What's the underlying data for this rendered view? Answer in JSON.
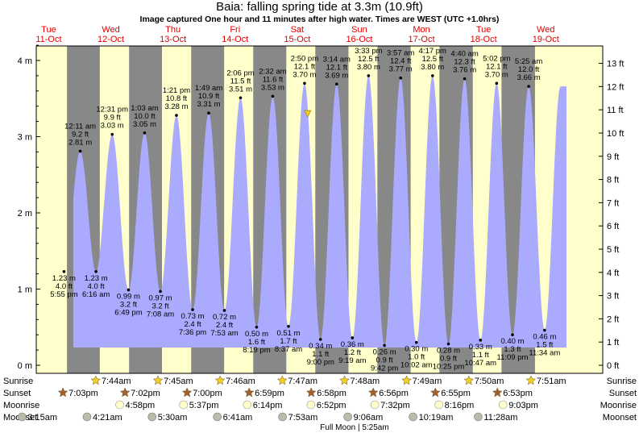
{
  "header": {
    "title": "Baia: falling  spring tide at 3.3m (10.9ft)",
    "subtitle": "Image captured One hour and 11 minutes after high water. Times are WEST (UTC +1.0hrs)"
  },
  "colors": {
    "day_bg": "#ffffcc",
    "night_bg": "#888888",
    "tide_fill": "#aaaaff",
    "day_label": "#e00000",
    "sun_star": "#f0d020",
    "sunset_star": "#a06030",
    "moonrise": "#ffffcc",
    "moonset": "#bbbbaa"
  },
  "chart_data": {
    "type": "area",
    "title": "Baia: falling  spring tide at 3.3m (10.9ft)",
    "ylabel_left": "m",
    "ylabel_right": "ft",
    "ylim_m": [
      0,
      4.3
    ],
    "yticks_m": [
      "0 m",
      "1 m",
      "2 m",
      "3 m",
      "4 m"
    ],
    "yticks_ft": [
      "0 ft",
      "1 ft",
      "2 ft",
      "3 ft",
      "4 ft",
      "5 ft",
      "6 ft",
      "7 ft",
      "8 ft",
      "9 ft",
      "10 ft",
      "11 ft",
      "12 ft",
      "13 ft"
    ],
    "days": [
      {
        "dow": "Tue",
        "date": "11-Oct"
      },
      {
        "dow": "Wed",
        "date": "12-Oct"
      },
      {
        "dow": "Thu",
        "date": "13-Oct"
      },
      {
        "dow": "Fri",
        "date": "14-Oct"
      },
      {
        "dow": "Sat",
        "date": "15-Oct"
      },
      {
        "dow": "Sun",
        "date": "16-Oct"
      },
      {
        "dow": "Mon",
        "date": "17-Oct"
      },
      {
        "dow": "Tue",
        "date": "18-Oct"
      },
      {
        "dow": "Wed",
        "date": "19-Oct"
      }
    ],
    "tides": [
      {
        "type": "low",
        "m": 1.23,
        "m_label": "1.23 m",
        "ft": "4.0 ft",
        "time": "5:55 pm",
        "day": "Tue 11-Oct"
      },
      {
        "type": "high",
        "m": 2.81,
        "m_label": "2.81 m",
        "ft": "9.2 ft",
        "time": "12:11 am",
        "day": "Wed 12-Oct"
      },
      {
        "type": "low",
        "m": 1.23,
        "m_label": "1.23 m",
        "ft": "4.0 ft",
        "time": "6:16 am",
        "day": "Wed 12-Oct"
      },
      {
        "type": "high",
        "m": 3.03,
        "m_label": "3.03 m",
        "ft": "9.9 ft",
        "time": "12:31 pm",
        "day": "Wed 12-Oct"
      },
      {
        "type": "low",
        "m": 0.99,
        "m_label": "0.99 m",
        "ft": "3.2 ft",
        "time": "6:49 pm",
        "day": "Wed 12-Oct"
      },
      {
        "type": "high",
        "m": 3.05,
        "m_label": "3.05 m",
        "ft": "10.0 ft",
        "time": "1:03 am",
        "day": "Thu 13-Oct"
      },
      {
        "type": "low",
        "m": 0.97,
        "m_label": "0.97 m",
        "ft": "3.2 ft",
        "time": "7:08 am",
        "day": "Thu 13-Oct"
      },
      {
        "type": "high",
        "m": 3.28,
        "m_label": "3.28 m",
        "ft": "10.8 ft",
        "time": "1:21 pm",
        "day": "Thu 13-Oct"
      },
      {
        "type": "low",
        "m": 0.73,
        "m_label": "0.73 m",
        "ft": "2.4 ft",
        "time": "7:36 pm",
        "day": "Thu 13-Oct"
      },
      {
        "type": "high",
        "m": 3.31,
        "m_label": "3.31 m",
        "ft": "10.9 ft",
        "time": "1:49 am",
        "day": "Fri 14-Oct"
      },
      {
        "type": "low",
        "m": 0.72,
        "m_label": "0.72 m",
        "ft": "2.4 ft",
        "time": "7:53 am",
        "day": "Fri 14-Oct"
      },
      {
        "type": "high",
        "m": 3.51,
        "m_label": "3.51 m",
        "ft": "11.5 ft",
        "time": "2:06 pm",
        "day": "Fri 14-Oct"
      },
      {
        "type": "low",
        "m": 0.5,
        "m_label": "0.50 m",
        "ft": "1.6 ft",
        "time": "8:19 pm",
        "day": "Fri 14-Oct"
      },
      {
        "type": "high",
        "m": 3.53,
        "m_label": "3.53 m",
        "ft": "11.6 ft",
        "time": "2:32 am",
        "day": "Sat 15-Oct"
      },
      {
        "type": "low",
        "m": 0.51,
        "m_label": "0.51 m",
        "ft": "1.7 ft",
        "time": "8:37 am",
        "day": "Sat 15-Oct"
      },
      {
        "type": "high",
        "m": 3.7,
        "m_label": "3.70 m",
        "ft": "12.1 ft",
        "time": "2:50 pm",
        "day": "Sat 15-Oct"
      },
      {
        "type": "low",
        "m": 0.34,
        "m_label": "0.34 m",
        "ft": "1.1 ft",
        "time": "9:00 pm",
        "day": "Sat 15-Oct"
      },
      {
        "type": "high",
        "m": 3.69,
        "m_label": "3.69 m",
        "ft": "12.1 ft",
        "time": "3:14 am",
        "day": "Sun 16-Oct"
      },
      {
        "type": "low",
        "m": 0.36,
        "m_label": "0.36 m",
        "ft": "1.2 ft",
        "time": "9:19 am",
        "day": "Sun 16-Oct"
      },
      {
        "type": "high",
        "m": 3.8,
        "m_label": "3.80 m",
        "ft": "12.5 ft",
        "time": "3:33 pm",
        "day": "Sun 16-Oct"
      },
      {
        "type": "low",
        "m": 0.26,
        "m_label": "0.26 m",
        "ft": "0.9 ft",
        "time": "9:42 pm",
        "day": "Sun 16-Oct"
      },
      {
        "type": "high",
        "m": 3.77,
        "m_label": "3.77 m",
        "ft": "12.4 ft",
        "time": "3:57 am",
        "day": "Mon 17-Oct"
      },
      {
        "type": "low",
        "m": 0.3,
        "m_label": "0.30 m",
        "ft": "1.0 ft",
        "time": "10:02 am",
        "day": "Mon 17-Oct"
      },
      {
        "type": "high",
        "m": 3.8,
        "m_label": "3.80 m",
        "ft": "12.5 ft",
        "time": "4:17 pm",
        "day": "Mon 17-Oct"
      },
      {
        "type": "low",
        "m": 0.28,
        "m_label": "0.28 m",
        "ft": "0.9 ft",
        "time": "10:25 pm",
        "day": "Mon 17-Oct"
      },
      {
        "type": "high",
        "m": 3.76,
        "m_label": "3.76 m",
        "ft": "12.3 ft",
        "time": "4:40 am",
        "day": "Tue 18-Oct"
      },
      {
        "type": "low",
        "m": 0.33,
        "m_label": "0.33 m",
        "ft": "1.1 ft",
        "time": "10:47 am",
        "day": "Tue 18-Oct"
      },
      {
        "type": "high",
        "m": 3.7,
        "m_label": "3.70 m",
        "ft": "12.1 ft",
        "time": "5:02 pm",
        "day": "Tue 18-Oct"
      },
      {
        "type": "low",
        "m": 0.4,
        "m_label": "0.40 m",
        "ft": "1.3 ft",
        "time": "11:09 pm",
        "day": "Tue 18-Oct"
      },
      {
        "type": "high",
        "m": 3.66,
        "m_label": "3.66 m",
        "ft": "12.0 ft",
        "time": "5:25 am",
        "day": "Wed 19-Oct"
      },
      {
        "type": "low",
        "m": 0.46,
        "m_label": "0.46 m",
        "ft": "1.5 ft",
        "time": "11:34 am",
        "day": "Wed 19-Oct"
      }
    ],
    "current_level_m": 3.3
  },
  "bottom_rows": {
    "labels": [
      "Sunrise",
      "Sunset",
      "Moonrise",
      "Moonset"
    ],
    "sunrise": [
      "7:44am",
      "7:45am",
      "7:46am",
      "7:47am",
      "7:48am",
      "7:49am",
      "7:50am",
      "7:51am"
    ],
    "sunset": [
      "7:03pm",
      "7:02pm",
      "7:00pm",
      "6:59pm",
      "6:58pm",
      "6:56pm",
      "6:55pm",
      "6:53pm"
    ],
    "moonrise": [
      "4:58pm",
      "5:37pm",
      "6:14pm",
      "6:52pm",
      "7:32pm",
      "8:16pm",
      "9:03pm"
    ],
    "moonset": [
      "3:15am",
      "4:21am",
      "5:30am",
      "6:41am",
      "7:53am",
      "9:06am",
      "10:19am",
      "11:28am"
    ],
    "full_moon": "Full Moon | 5:25am"
  }
}
